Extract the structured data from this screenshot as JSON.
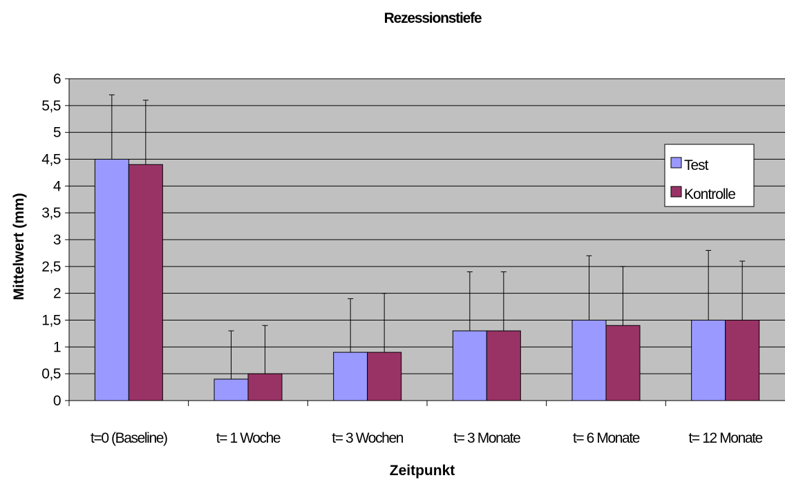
{
  "chart_data": {
    "type": "bar",
    "title": "Rezessionstiefe",
    "xlabel": "Zeitpunkt",
    "ylabel": "Mittelwert (mm)",
    "categories": [
      "t=0 (Baseline)",
      "t= 1 Woche",
      "t= 3 Wochen",
      "t= 3 Monate",
      "t= 6 Monate",
      "t= 12 Monate"
    ],
    "series": [
      {
        "name": "Test",
        "color": "#9999ff",
        "values": [
          4.5,
          0.4,
          0.9,
          1.3,
          1.5,
          1.5
        ],
        "error_upper": [
          5.7,
          1.3,
          1.9,
          2.4,
          2.7,
          2.8
        ]
      },
      {
        "name": "Kontrolle",
        "color": "#993366",
        "values": [
          4.4,
          0.5,
          0.9,
          1.3,
          1.4,
          1.5
        ],
        "error_upper": [
          5.6,
          1.4,
          2.0,
          2.4,
          2.5,
          2.6
        ]
      }
    ],
    "ylim": [
      0,
      6
    ],
    "yticks": [
      "0",
      "0,5",
      "1",
      "1,5",
      "2",
      "2,5",
      "3",
      "3,5",
      "4",
      "4,5",
      "5",
      "5,5",
      "6"
    ],
    "ytick_values": [
      0,
      0.5,
      1,
      1.5,
      2,
      2.5,
      3,
      3.5,
      4,
      4.5,
      5,
      5.5,
      6
    ],
    "grid": true,
    "plot_background": "#c0c0c0",
    "legend_position": "right"
  }
}
